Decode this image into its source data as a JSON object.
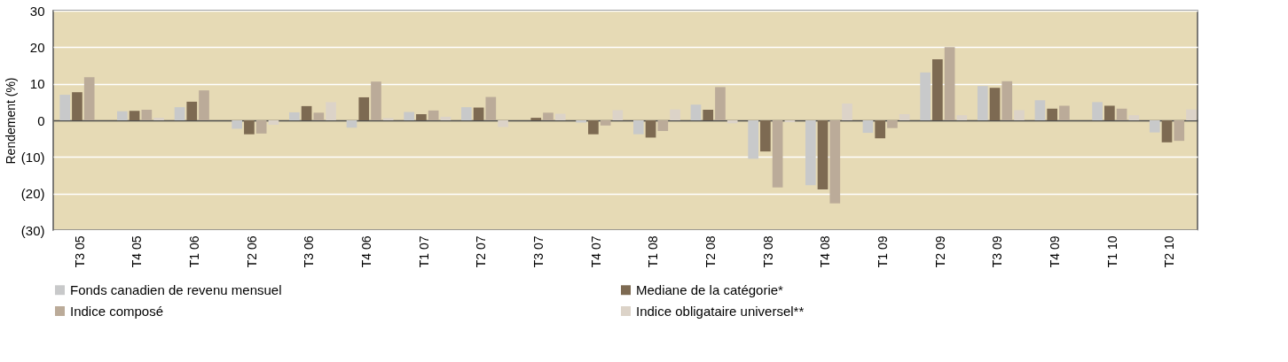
{
  "chart_data": {
    "type": "bar",
    "ylabel": "Rendement (%)",
    "categories": [
      "T3 05",
      "T4 05",
      "T1 06",
      "T2 06",
      "T3 06",
      "T4 06",
      "T1 07",
      "T2 07",
      "T3 07",
      "T4 07",
      "T1 08",
      "T2 08",
      "T3 08",
      "T4 08",
      "T1 09",
      "T2 09",
      "T3 09",
      "T4 09",
      "T1 10",
      "T2 10"
    ],
    "series": [
      {
        "name": "Fonds canadien de revenu mensuel",
        "color": "#c8c9ca",
        "values": [
          7.0,
          2.5,
          3.6,
          -2.3,
          2.2,
          -2.0,
          2.3,
          3.6,
          null,
          -0.6,
          -3.8,
          4.3,
          -10.5,
          -17.7,
          -3.4,
          13.1,
          9.4,
          5.5,
          5.0,
          -3.3
        ]
      },
      {
        "name": "Mediane de la catégorie*",
        "color": "#7d6a52",
        "values": [
          7.7,
          2.6,
          5.1,
          -3.8,
          3.9,
          6.3,
          1.7,
          3.5,
          0.7,
          -3.8,
          -4.7,
          2.9,
          -8.5,
          -18.9,
          -4.9,
          16.7,
          8.9,
          3.2,
          4.0,
          -6.0
        ]
      },
      {
        "name": "Indice composé",
        "color": "#bbab99",
        "values": [
          11.8,
          2.9,
          8.2,
          -3.6,
          2.1,
          10.6,
          2.7,
          6.4,
          2.1,
          -1.4,
          -2.9,
          9.1,
          -18.3,
          -22.7,
          -2.1,
          20.0,
          10.7,
          4.0,
          3.2,
          -5.6
        ]
      },
      {
        "name": "Indice obligataire universel**",
        "color": "#dcd3c8",
        "values": [
          null,
          0.7,
          null,
          -1.2,
          5.0,
          0.6,
          1.0,
          -1.8,
          1.8,
          2.8,
          3.0,
          -0.8,
          -0.5,
          4.6,
          1.7,
          1.4,
          2.8,
          null,
          1.4,
          3.0
        ]
      }
    ],
    "ylim": [
      -30,
      30
    ],
    "yticks": [
      {
        "value": -30,
        "label": "(30)"
      },
      {
        "value": -20,
        "label": "(20)"
      },
      {
        "value": -10,
        "label": "(10)"
      },
      0,
      10,
      20,
      30
    ],
    "grid": "y",
    "legend": "bottom"
  }
}
